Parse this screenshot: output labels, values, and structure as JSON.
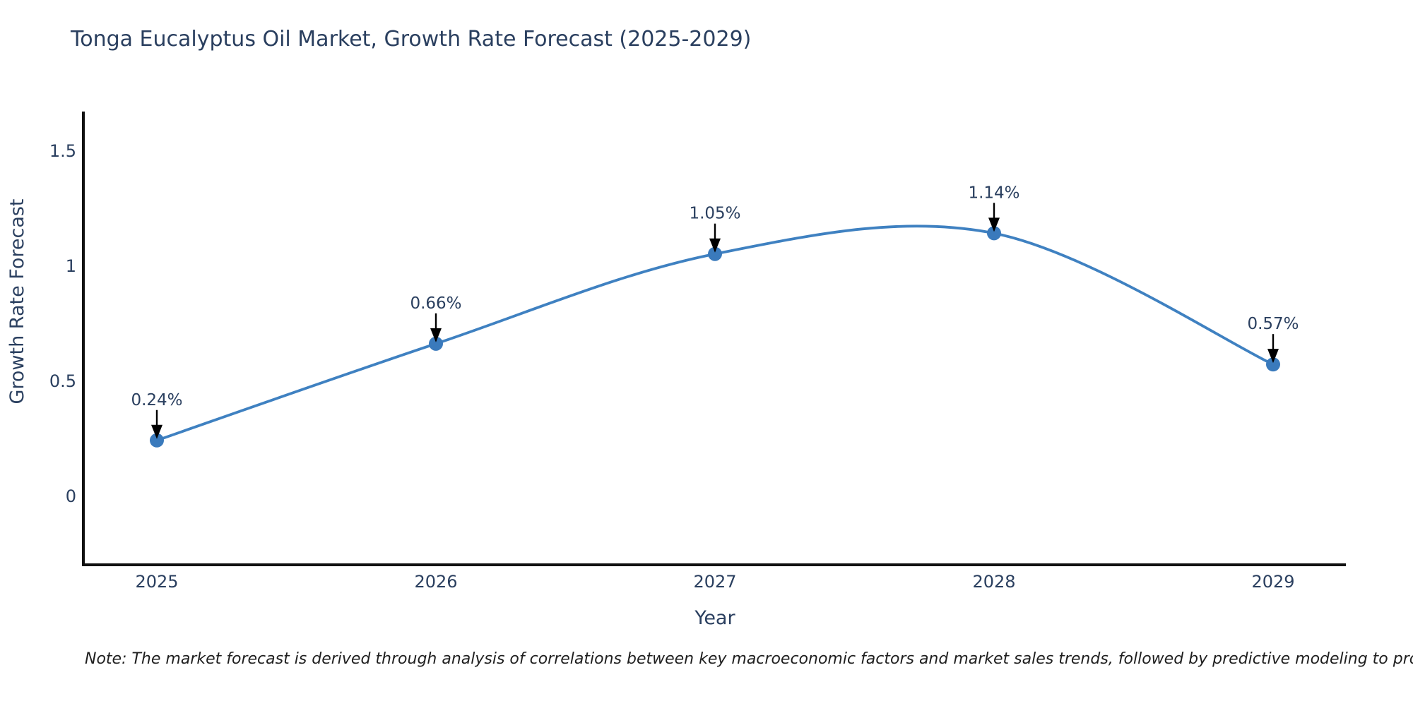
{
  "title": {
    "text": "Tonga Eucalyptus Oil Market, Growth Rate Forecast (2025-2029)"
  },
  "note": {
    "text": "Note: The market forecast is derived through analysis of correlations between key macroeconomic factors and market sales trends, followed by predictive modeling to project future sales"
  },
  "chart_data": {
    "type": "line",
    "title": "Tonga Eucalyptus Oil Market, Growth Rate Forecast (2025-2029)",
    "xlabel": "Year",
    "ylabel": "Growth Rate Forecast",
    "categories": [
      "2025",
      "2026",
      "2027",
      "2028",
      "2029"
    ],
    "series": [
      {
        "name": "Growth Rate Forecast",
        "values": [
          0.24,
          0.66,
          1.05,
          1.14,
          0.57
        ]
      }
    ],
    "point_labels": [
      "0.24%",
      "0.66%",
      "1.05%",
      "1.14%",
      "0.57%"
    ],
    "y_ticks": [
      0,
      0.5,
      1,
      1.5
    ],
    "y_tick_labels": [
      "0",
      "0.5",
      "1",
      "1.5"
    ],
    "ylim": [
      -0.3,
      1.66
    ],
    "line_shape": "spline",
    "grid": false,
    "legend": "none",
    "colors": {
      "line": "#3f81c1",
      "marker": "#3a7abc",
      "axis": "#111111",
      "text": "#2a3f5f",
      "arrow": "#000000",
      "background": "#ffffff"
    }
  }
}
